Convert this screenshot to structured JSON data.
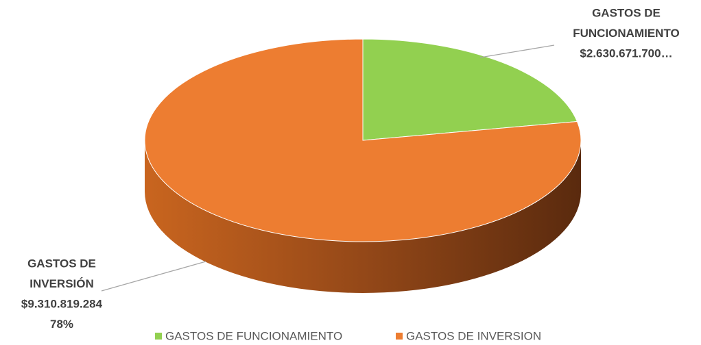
{
  "chart_data": {
    "type": "pie3d",
    "categories": [
      "GASTOS DE FUNCIONAMIENTO",
      "GASTOS DE INVERSION"
    ],
    "values": [
      2630671700,
      9310819284
    ],
    "colors": [
      "#92d050",
      "#ed7d31"
    ],
    "label_names": [
      [
        "GASTOS DE",
        "FUNCIONAMIENTO"
      ],
      [
        "GASTOS DE",
        "INVERSIÓN"
      ]
    ],
    "value_labels": [
      "$2.630.671.700…",
      "$9.310.819.284"
    ],
    "percent_labels": [
      null,
      "78%"
    ],
    "legend": "bottom"
  }
}
